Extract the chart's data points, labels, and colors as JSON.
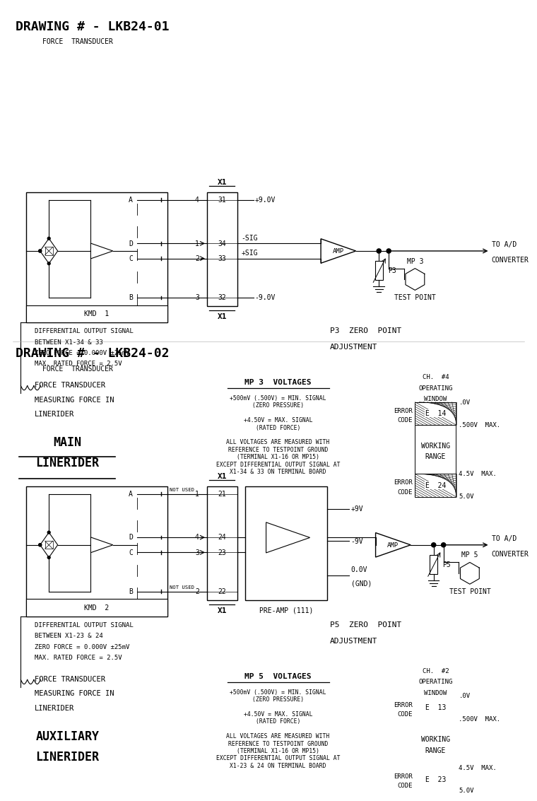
{
  "title1": "DRAWING # - LKB24-01",
  "title2": "DRAWING # - LKB24-02",
  "bg_color": "#ffffff",
  "line_color": "#000000",
  "text_color": "#000000",
  "font_size_title": 13,
  "font_size_label": 7,
  "font_size_small": 6,
  "diagram1": {
    "force_transducer_label": "FORCE  TRANSDUCER",
    "kmd_label": "KMD  1",
    "x1_label": "X1",
    "pins": [
      {
        "num": "31",
        "wire": "4",
        "label": "+9.0V",
        "row": "A"
      },
      {
        "num": "34",
        "wire": "1",
        "label": "-SIG",
        "row": "D"
      },
      {
        "num": "33",
        "wire": "2",
        "label": "+SIG",
        "row": "C"
      },
      {
        "num": "32",
        "wire": "3",
        "label": "-9.0V",
        "row": "B"
      }
    ],
    "amp_label": "AMP",
    "p3_label": "P3",
    "p3_zero_label": "P3  ZERO  POINT\nADJUSTMENT",
    "mp3_label": "MP 3\nTEST POINT",
    "to_ad_label": "TO A/D\nCONVERTER",
    "diff_signal_text": "DIFFERENTIAL OUTPUT SIGNAL\nBETWEEN X1-34 & 33\nZERO FORCE = 0.000V ±25mV\nMAX. RATED FORCE = 2.5V",
    "ft_measuring_text": "FORCE TRANSDUCER\nMEASURING FORCE IN\nLINERIDER",
    "main_label": "MAIN\nLINERIDER",
    "mp3_voltages_title": "MP 3  VOLTAGES",
    "mp3_voltages_text": "+500mV (.500V) = MIN. SIGNAL\n(ZERO PRESSURE)\n\n+4.50V = MAX. SIGNAL\n(RATED FORCE)\n\nALL VOLTAGES ARE MEASURED WITH\nREFERENCE TO TESTPOINT GROUND\n(TERMINAL X1-16 OR MP15)\nEXCEPT DIFFERENTIAL OUTPUT SIGNAL AT\nX1-34 & 33 ON TERMINAL BOARD",
    "ch4_label": "CH.  #4\nOPERATING\nWINDOW",
    "error14": "E  14",
    "error24": "E  24",
    "working_range": "WORKING\nRANGE",
    "v_labels1": [
      ".0V",
      ".500V  MAX.",
      "4.5V  MAX.",
      "5.0V"
    ]
  },
  "diagram2": {
    "force_transducer_label": "FORCE  TRANSDUCER",
    "kmd_label": "KMD  2",
    "x1_label": "X1",
    "pins": [
      {
        "num": "21",
        "wire": "1",
        "label": "NOT USED",
        "row": "A"
      },
      {
        "num": "24",
        "wire": "4",
        "label": "",
        "row": "D"
      },
      {
        "num": "23",
        "wire": "3",
        "label": "",
        "row": "C"
      },
      {
        "num": "22",
        "wire": "2",
        "label": "NOT USED",
        "row": "B"
      }
    ],
    "preamp_label": "PRE-AMP (111)",
    "amp_label": "AMP",
    "p5_label": "P5",
    "p5_zero_label": "P5  ZERO  POINT\nADJUSTMENT",
    "mp5_label": "MP 5\nTEST POINT",
    "to_ad_label": "TO A/D\nCONVERTER",
    "power_labels": [
      "+9V",
      "-9V",
      "0.0V\n(GND)"
    ],
    "diff_signal_text": "DIFFERENTIAL OUTPUT SIGNAL\nBETWEEN X1-23 & 24\nZERO FORCE = 0.000V ±25mV\nMAX. RATED FORCE = 2.5V",
    "ft_measuring_text": "FORCE TRANSDUCER\nMEASURING FORCE IN\nLINERIDER",
    "aux_label": "AUXILIARY\nLINERIDER",
    "mp5_voltages_title": "MP 5  VOLTAGES",
    "mp5_voltages_text": "+500mV (.500V) = MIN. SIGNAL\n(ZERO PRESSURE)\n\n+4.50V = MAX. SIGNAL\n(RATED FORCE)\n\nALL VOLTAGES ARE MEASURED WITH\nREFERENCE TO TESTPOINT GROUND\n(TERMINAL X1-16 OR MP15)\nEXCEPT DIFFERENTIAL OUTPUT SIGNAL AT\nX1-23 & 24 ON TERMINAL BOARD",
    "ch2_label": "CH.  #2\nOPERATING\nWINDOW",
    "error13": "E  13",
    "error23": "E  23",
    "working_range": "WORKING\nRANGE",
    "v_labels2": [
      ".0V",
      ".500V  MAX.",
      "4.5V  MAX.",
      "5.0V"
    ]
  }
}
